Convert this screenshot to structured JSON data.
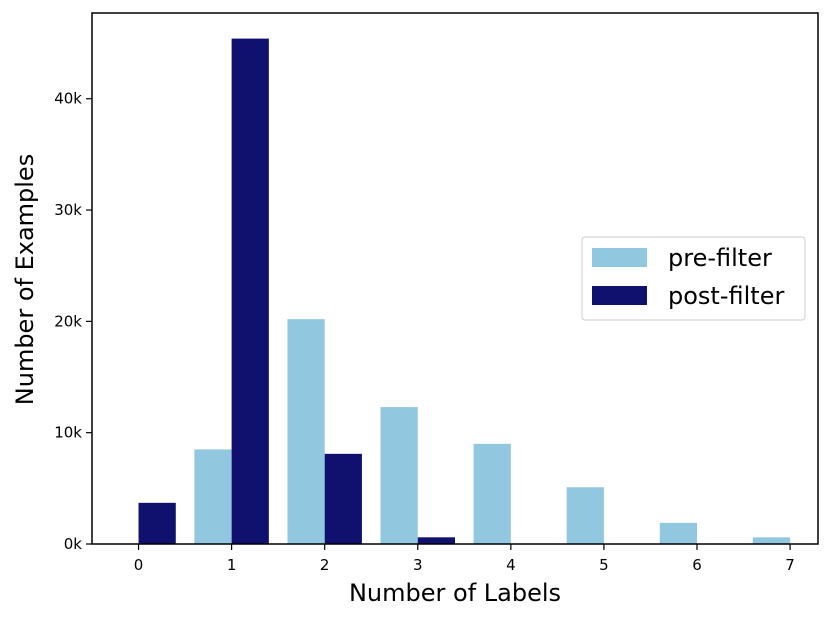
{
  "chart_data": {
    "type": "bar",
    "categories": [
      "0",
      "1",
      "2",
      "3",
      "4",
      "5",
      "6",
      "7"
    ],
    "x": [
      0,
      1,
      2,
      3,
      4,
      5,
      6,
      7
    ],
    "series": [
      {
        "name": "pre-filter",
        "values": [
          0,
          8500,
          20200,
          12300,
          9000,
          5100,
          1900,
          600
        ],
        "color": "#92c8df"
      },
      {
        "name": "post-filter",
        "values": [
          3700,
          45400,
          8100,
          600,
          0,
          0,
          0,
          0
        ],
        "color": "#10106e"
      }
    ],
    "title": "",
    "xlabel": "Number of Labels",
    "ylabel": "Number of Examples",
    "ylim": [
      0,
      47700
    ],
    "xlim": [
      -0.5,
      7.3
    ],
    "yticks": [
      0,
      10000,
      20000,
      30000,
      40000
    ],
    "ytick_labels": [
      "0k",
      "10k",
      "20k",
      "30k",
      "40k"
    ],
    "xtick_labels": [
      "0",
      "1",
      "2",
      "3",
      "4",
      "5",
      "6",
      "7"
    ],
    "grid": false,
    "legend": "center-right"
  }
}
